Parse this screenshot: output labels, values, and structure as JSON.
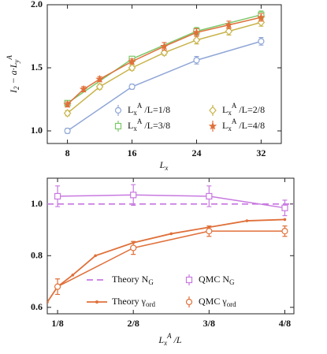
{
  "chart_data": [
    {
      "type": "line",
      "xlabel": "L_x",
      "ylabel": "I_2 − a·L_y^A",
      "xlim": [
        5.5,
        34.5
      ],
      "xticks": [
        8,
        16,
        24,
        32
      ],
      "ylim": [
        0.9,
        2.0
      ],
      "yticks": [
        {
          "value": 1.0,
          "label": "1.0"
        },
        1.5,
        {
          "value": 2.0,
          "label": "2.0"
        }
      ],
      "legend": "lower right",
      "series": [
        {
          "name": "L_x^A /L=1/8",
          "color": "#8fa6d6",
          "marker": "circle",
          "x": [
            8,
            16,
            24,
            32
          ],
          "values": [
            1.0,
            1.35,
            1.56,
            1.71
          ],
          "errors": [
            0.02,
            0.02,
            0.03,
            0.03
          ]
        },
        {
          "name": "L_x^A /L=2/8",
          "color": "#c8b44a",
          "marker": "diamond",
          "x": [
            8,
            12,
            16,
            20,
            24,
            28,
            32
          ],
          "values": [
            1.14,
            1.35,
            1.5,
            1.62,
            1.72,
            1.79,
            1.86
          ],
          "errors": [
            0.02,
            0.02,
            0.02,
            0.02,
            0.03,
            0.03,
            0.03
          ]
        },
        {
          "name": "L_x^A /L=3/8",
          "color": "#7dc86a",
          "marker": "square",
          "x": [
            8,
            16,
            24,
            32
          ],
          "values": [
            1.22,
            1.57,
            1.79,
            1.92
          ],
          "errors": [
            0.02,
            0.02,
            0.03,
            0.03
          ]
        },
        {
          "name": "L_x^A /L=4/8",
          "color": "#e0703a",
          "marker": "star",
          "x": [
            8,
            10,
            12,
            16,
            20,
            24,
            28,
            32
          ],
          "values": [
            1.21,
            1.33,
            1.41,
            1.55,
            1.67,
            1.78,
            1.84,
            1.9
          ],
          "errors": [
            0.02,
            0.02,
            0.02,
            0.02,
            0.03,
            0.03,
            0.03,
            0.03
          ]
        }
      ]
    },
    {
      "type": "line",
      "xlabel": "L_x^A /L",
      "xlim": [
        0.108,
        0.515
      ],
      "xticks": [
        {
          "value": 0.125,
          "label": "1/8"
        },
        {
          "value": 0.25,
          "label": "2/8"
        },
        {
          "value": 0.375,
          "label": "3/8"
        },
        {
          "value": 0.5,
          "label": "4/8"
        }
      ],
      "ylim": [
        0.575,
        1.1
      ],
      "yticks": [
        0.6,
        0.8,
        {
          "value": 1.0,
          "label": "1.0"
        }
      ],
      "legend": "lower right",
      "series": [
        {
          "name": "Theory N_G",
          "color": "#c879e0",
          "line": "dashed",
          "x": [
            0.108,
            0.515
          ],
          "values": [
            1.0,
            1.0
          ]
        },
        {
          "name": "QMC N_G",
          "color": "#c879e0",
          "marker": "square",
          "x": [
            0.125,
            0.25,
            0.375,
            0.5
          ],
          "values": [
            1.03,
            1.035,
            1.03,
            0.985
          ],
          "errors": [
            0.04,
            0.04,
            0.04,
            0.03
          ]
        },
        {
          "name": "Theory γ_{ord}",
          "color": "#e0703a",
          "line": "solid",
          "dots": true,
          "x": [
            0.108,
            0.125,
            0.15,
            0.1875,
            0.25,
            0.3125,
            0.375,
            0.4375,
            0.5
          ],
          "values": [
            0.62,
            0.68,
            0.725,
            0.8,
            0.85,
            0.885,
            0.91,
            0.935,
            0.94
          ]
        },
        {
          "name": "QMC γ_{ord}",
          "color": "#e0703a",
          "marker": "circle",
          "x": [
            0.125,
            0.25,
            0.375,
            0.5
          ],
          "values": [
            0.68,
            0.83,
            0.895,
            0.895
          ],
          "errors": [
            0.03,
            0.025,
            0.02,
            0.02
          ]
        }
      ]
    }
  ]
}
